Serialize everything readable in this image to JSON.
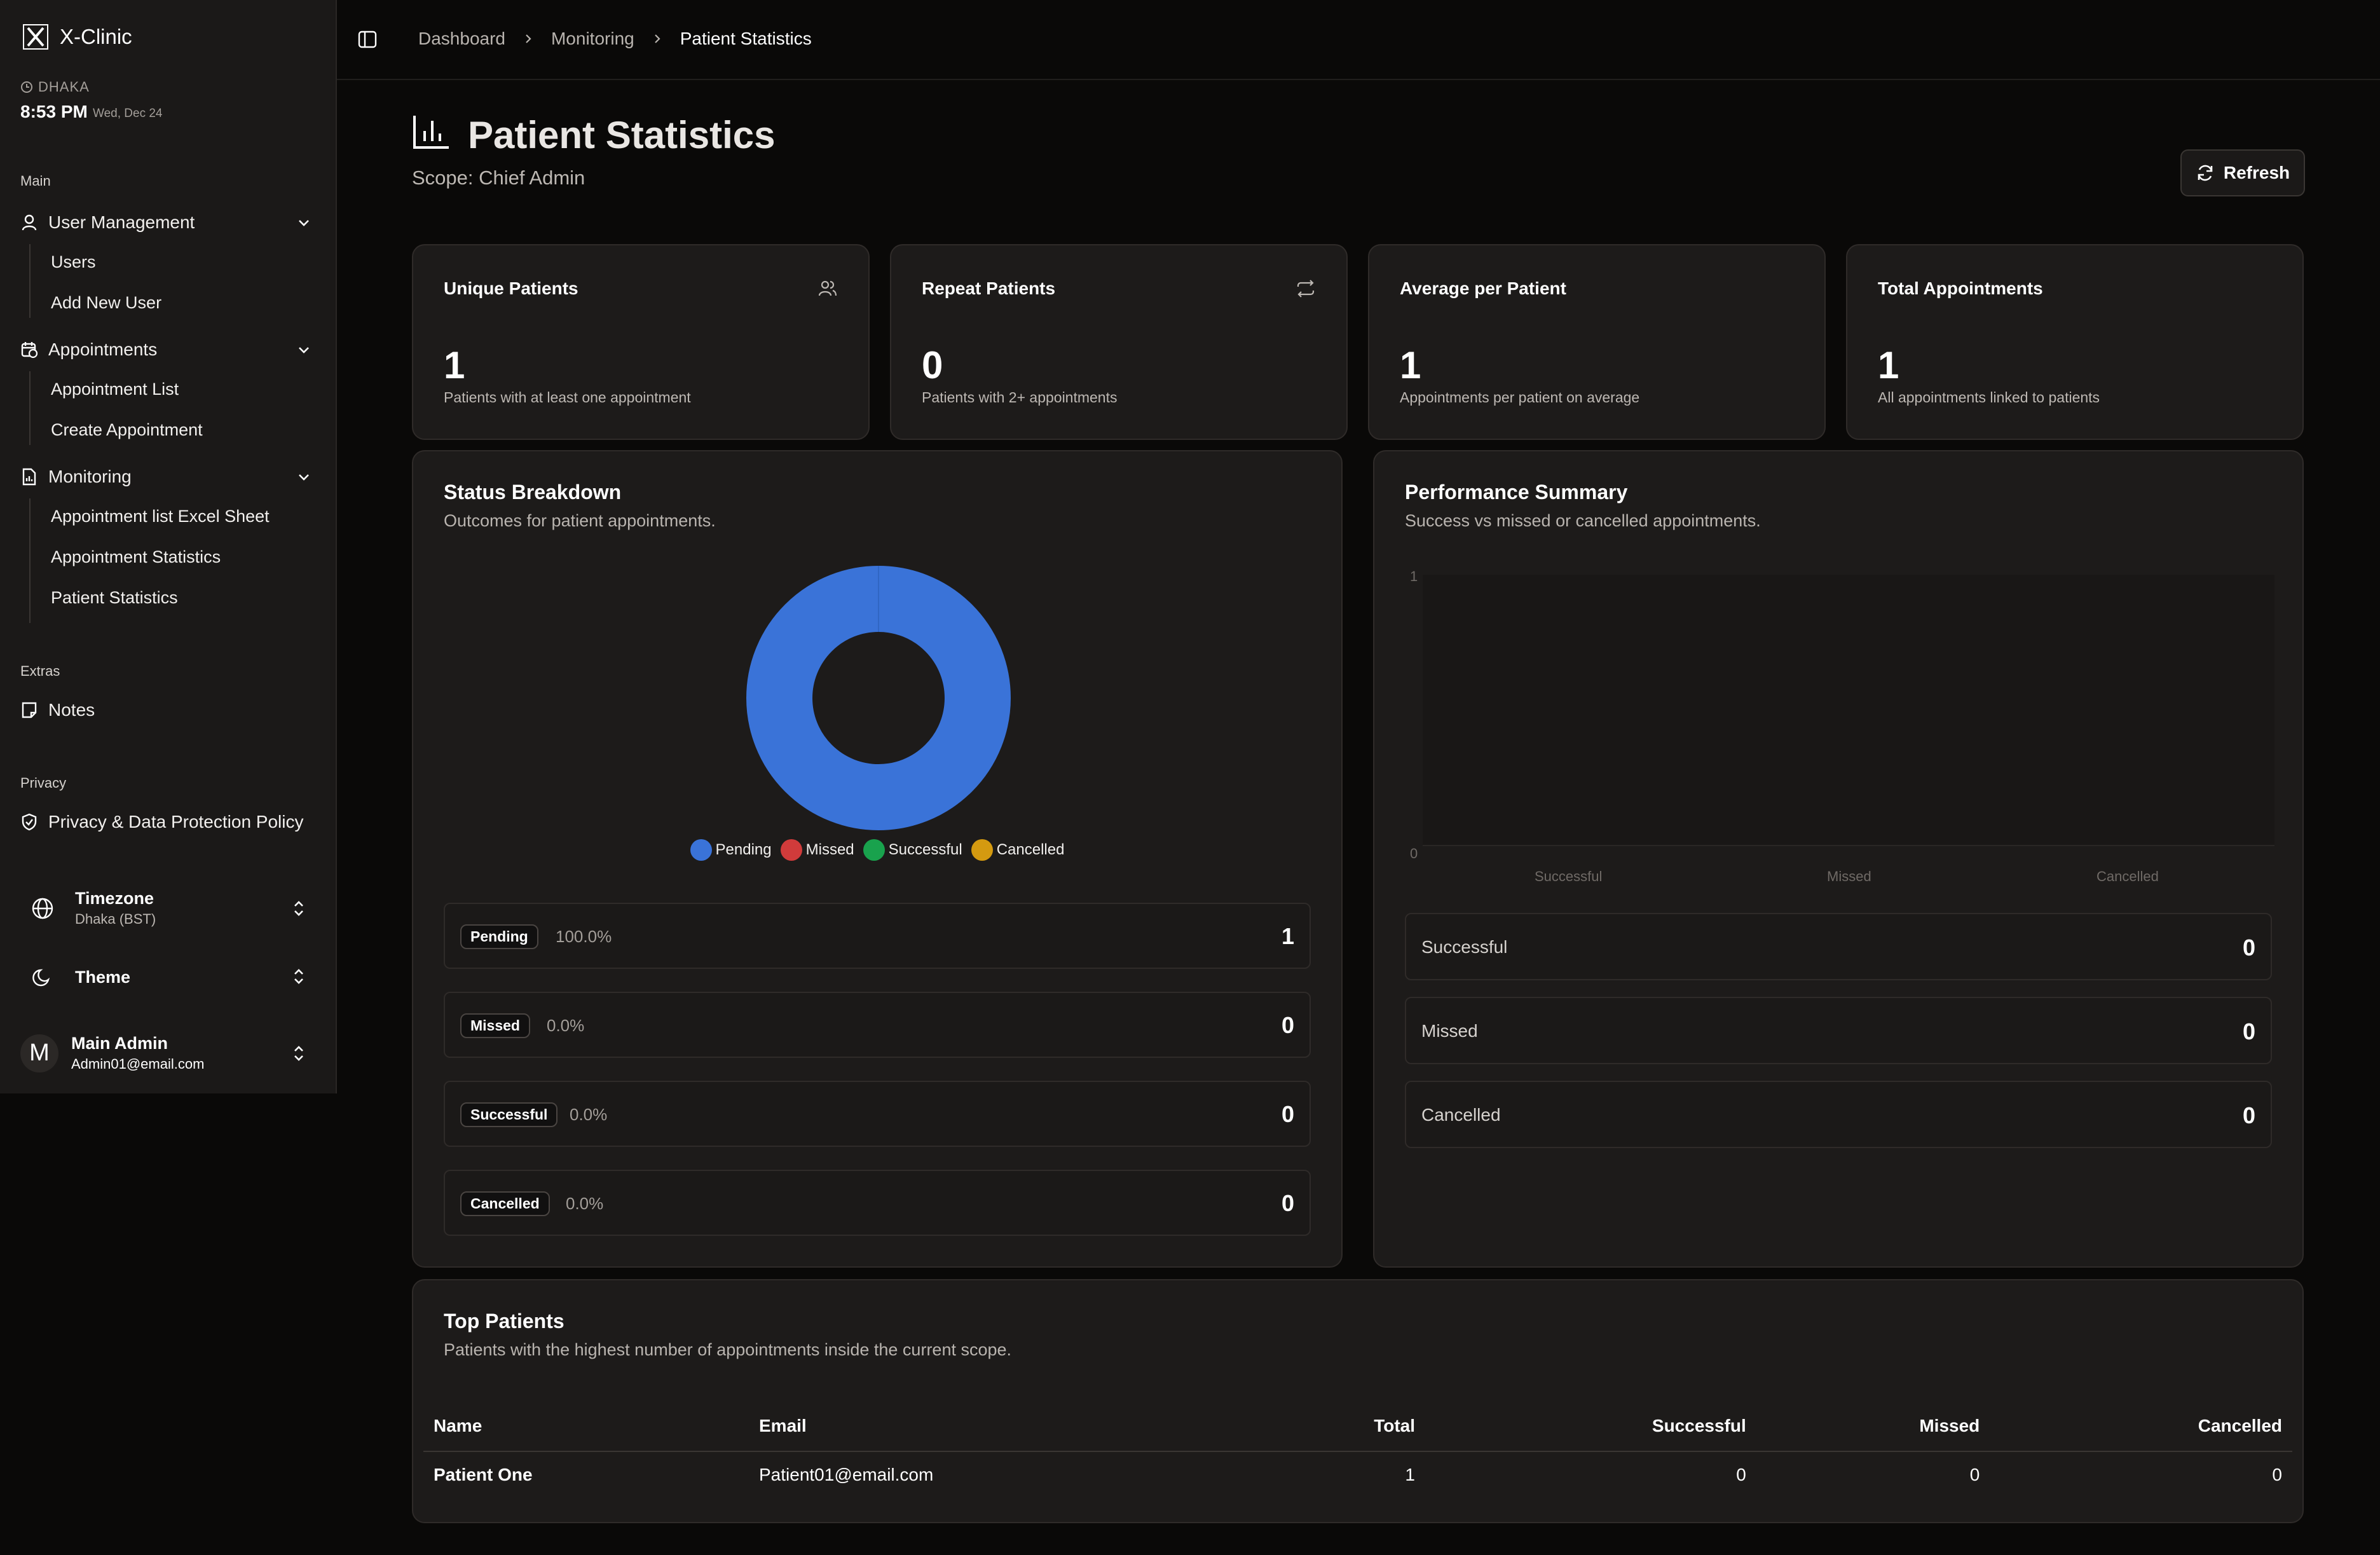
{
  "app": {
    "name": "X-Clinic"
  },
  "clock": {
    "city": "DHAKA",
    "time": "8:53 PM",
    "date": "Wed, Dec 24"
  },
  "sidebar": {
    "main_label": "Main",
    "user_management": {
      "label": "User Management",
      "items": [
        "Users",
        "Add New User"
      ]
    },
    "appointments": {
      "label": "Appointments",
      "items": [
        "Appointment List",
        "Create Appointment"
      ]
    },
    "monitoring": {
      "label": "Monitoring",
      "items": [
        "Appointment list Excel Sheet",
        "Appointment Statistics",
        "Patient Statistics"
      ]
    },
    "extras_label": "Extras",
    "notes_label": "Notes",
    "privacy_label": "Privacy",
    "privacy_item": "Privacy & Data Protection Policy",
    "timezone": {
      "title": "Timezone",
      "value": "Dhaka (BST)"
    },
    "theme": {
      "title": "Theme"
    },
    "user": {
      "initial": "M",
      "name": "Main Admin",
      "email": "Admin01@email.com"
    }
  },
  "breadcrumb": [
    "Dashboard",
    "Monitoring",
    "Patient Statistics"
  ],
  "page": {
    "title": "Patient Statistics",
    "scope": "Scope: Chief Admin",
    "refresh_label": "Refresh"
  },
  "stats": [
    {
      "title": "Unique Patients",
      "value": "1",
      "sub": "Patients with at least one appointment",
      "icon": "users-icon"
    },
    {
      "title": "Repeat Patients",
      "value": "0",
      "sub": "Patients with 2+ appointments",
      "icon": "repeat-icon"
    },
    {
      "title": "Average per Patient",
      "value": "1",
      "sub": "Appointments per patient on average"
    },
    {
      "title": "Total Appointments",
      "value": "1",
      "sub": "All appointments linked to patients"
    }
  ],
  "status_breakdown": {
    "title": "Status Breakdown",
    "subtitle": "Outcomes for patient appointments.",
    "rows": [
      {
        "label": "Pending",
        "pct": "100.0%",
        "count": "1"
      },
      {
        "label": "Missed",
        "pct": "0.0%",
        "count": "0"
      },
      {
        "label": "Successful",
        "pct": "0.0%",
        "count": "0"
      },
      {
        "label": "Cancelled",
        "pct": "0.0%",
        "count": "0"
      }
    ]
  },
  "performance": {
    "title": "Performance Summary",
    "subtitle": "Success vs missed or cancelled appointments.",
    "rows": [
      {
        "label": "Successful",
        "value": "0"
      },
      {
        "label": "Missed",
        "value": "0"
      },
      {
        "label": "Cancelled",
        "value": "0"
      }
    ]
  },
  "top_patients": {
    "title": "Top Patients",
    "subtitle": "Patients with the highest number of appointments inside the current scope.",
    "columns": [
      "Name",
      "Email",
      "Total",
      "Successful",
      "Missed",
      "Cancelled"
    ],
    "rows": [
      {
        "name": "Patient One",
        "email": "Patient01@email.com",
        "total": "1",
        "successful": "0",
        "missed": "0",
        "cancelled": "0"
      }
    ]
  },
  "chart_data": [
    {
      "type": "pie",
      "categories": [
        "Pending",
        "Missed",
        "Successful",
        "Cancelled"
      ],
      "values": [
        1,
        0,
        0,
        0
      ],
      "colors": [
        "#3a73d8",
        "#d13b3b",
        "#19a24d",
        "#d49a10"
      ],
      "legend": "bottom"
    },
    {
      "type": "bar",
      "categories": [
        "Successful",
        "Missed",
        "Cancelled"
      ],
      "values": [
        0,
        0,
        0
      ],
      "ylim": [
        0,
        1
      ],
      "yticks": [
        "0",
        "1"
      ]
    }
  ]
}
